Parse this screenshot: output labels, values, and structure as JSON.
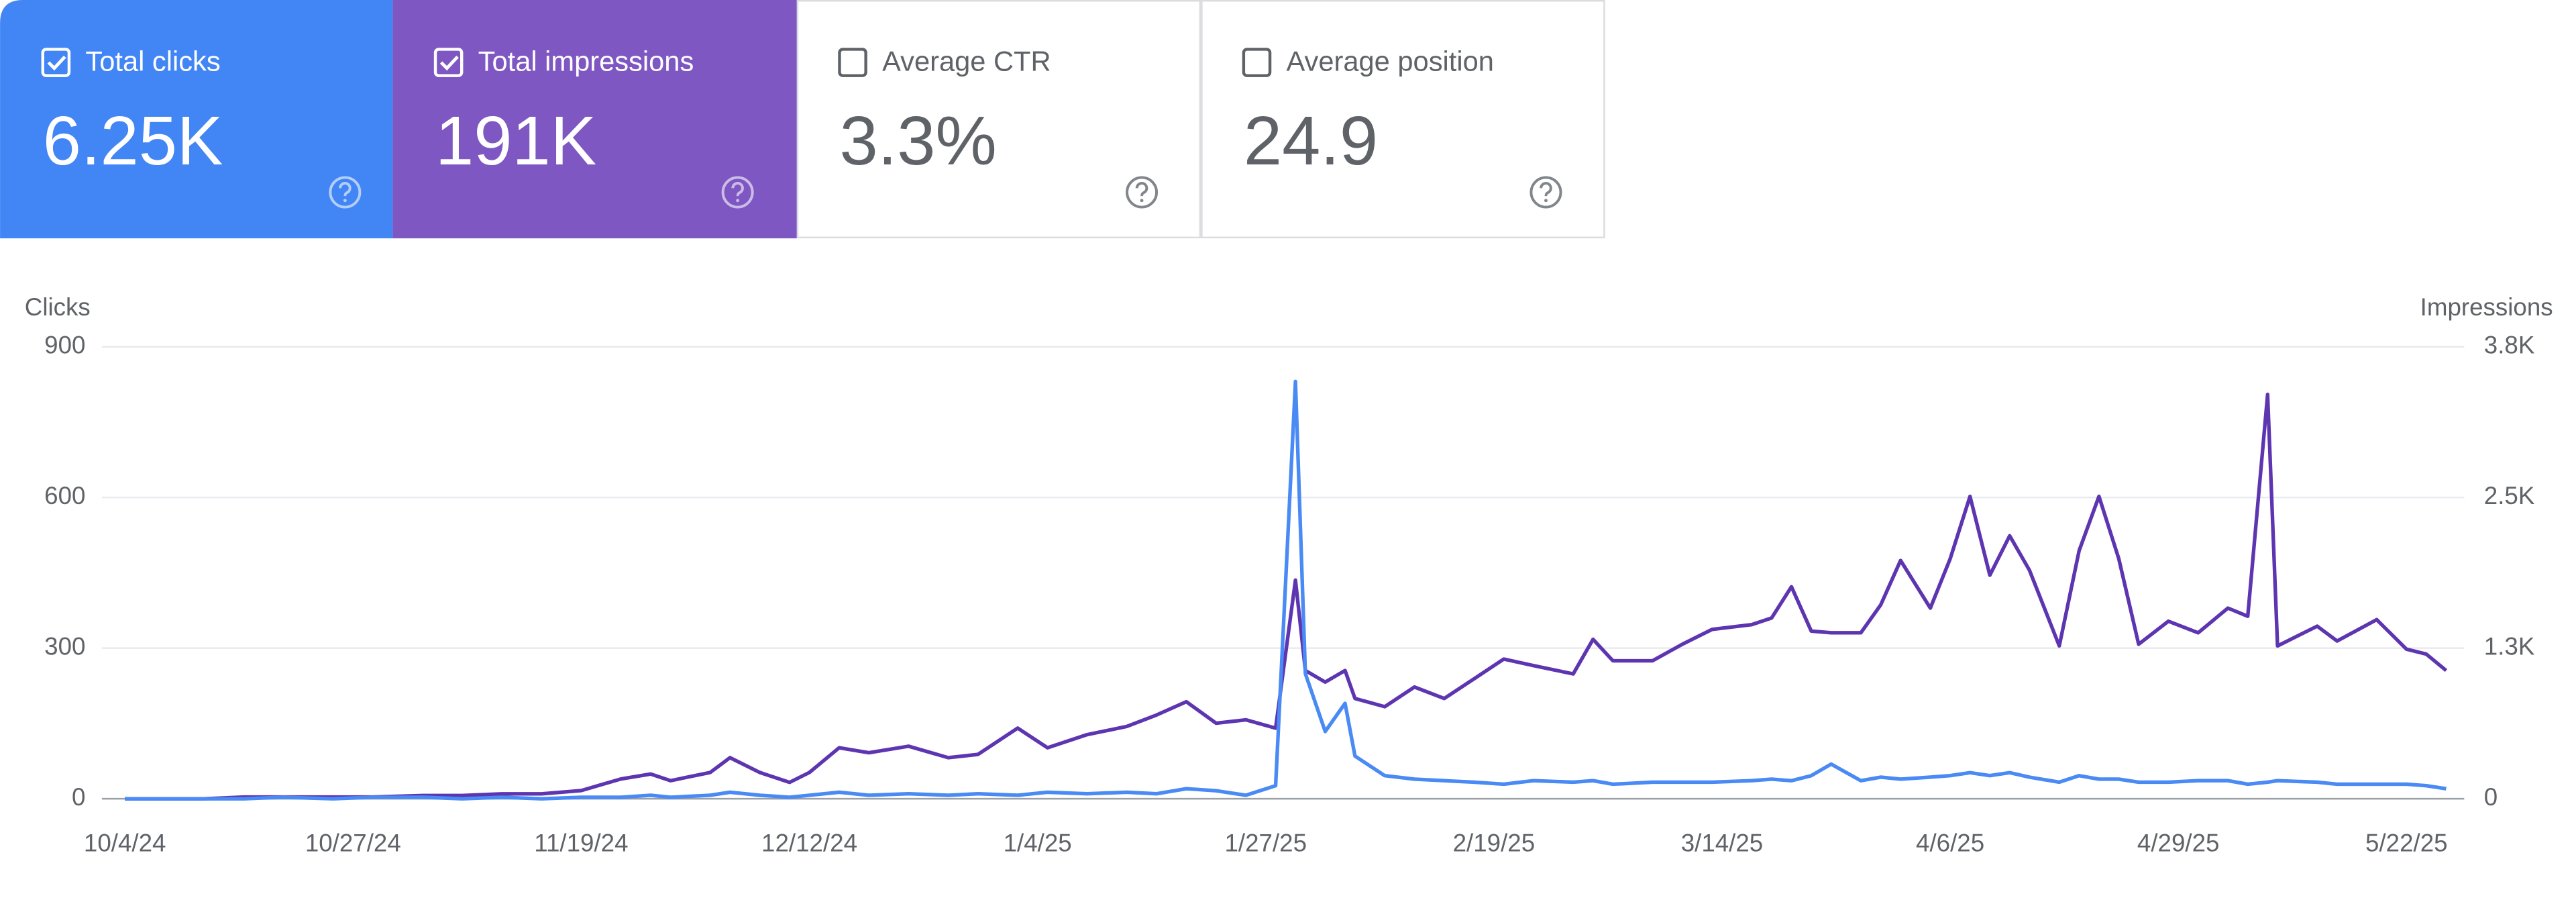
{
  "metric_cards": [
    {
      "label": "Total clicks",
      "value": "6.25K",
      "checked": true,
      "color": "#4285f4"
    },
    {
      "label": "Total impressions",
      "value": "191K",
      "checked": true,
      "color": "#7e57c2"
    },
    {
      "label": "Average CTR",
      "value": "3.3%",
      "checked": false
    },
    {
      "label": "Average position",
      "value": "24.9",
      "checked": false
    }
  ],
  "chart_data": {
    "type": "line",
    "ylabel": "Clicks",
    "y2label": "Impressions",
    "x": [
      "10/4/24",
      "10/8/24",
      "10/12/24",
      "10/16/24",
      "10/20/24",
      "10/25/24",
      "10/29/24",
      "11/3/24",
      "11/7/24",
      "11/11/24",
      "11/15/24",
      "11/19/24",
      "11/23/24",
      "11/26/24",
      "11/28/24",
      "12/2/24",
      "12/4/24",
      "12/7/24",
      "12/10/24",
      "12/12/24",
      "12/15/24",
      "12/18/24",
      "12/22/24",
      "12/26/24",
      "12/29/24",
      "1/2/25",
      "1/5/25",
      "1/9/25",
      "1/13/25",
      "1/16/25",
      "1/19/25",
      "1/22/25",
      "1/25/25",
      "1/28/25",
      "1/30/25",
      "1/31/25",
      "2/2/25",
      "2/4/25",
      "2/5/25",
      "2/8/25",
      "2/11/25",
      "2/14/25",
      "2/17/25",
      "2/20/25",
      "2/23/25",
      "2/27/25",
      "3/1/25",
      "3/3/25",
      "3/7/25",
      "3/10/25",
      "3/13/25",
      "3/17/25",
      "3/19/25",
      "3/21/25",
      "3/23/25",
      "3/25/25",
      "3/28/25",
      "3/30/25",
      "4/1/25",
      "4/4/25",
      "4/6/25",
      "4/8/25",
      "4/10/25",
      "4/12/25",
      "4/14/25",
      "4/17/25",
      "4/19/25",
      "4/21/25",
      "4/23/25",
      "4/25/25",
      "4/28/25",
      "5/1/25",
      "5/4/25",
      "5/6/25",
      "5/8/25",
      "5/9/25",
      "5/13/25",
      "5/15/25",
      "5/19/25",
      "5/22/25",
      "5/24/25",
      "5/26/25"
    ],
    "series": [
      {
        "color": "#4a8af4",
        "axis": "y",
        "values": [
          0,
          0,
          0,
          0,
          3,
          0,
          3,
          3,
          0,
          3,
          0,
          3,
          3,
          7,
          3,
          7,
          13,
          7,
          3,
          7,
          13,
          7,
          10,
          7,
          10,
          7,
          13,
          10,
          13,
          10,
          20,
          16,
          7,
          26,
          831,
          249,
          134,
          190,
          85,
          46,
          39,
          36,
          33,
          29,
          36,
          33,
          36,
          29,
          33,
          33,
          33,
          36,
          39,
          36,
          46,
          69,
          36,
          43,
          39,
          43,
          46,
          52,
          46,
          52,
          43,
          33,
          46,
          39,
          39,
          33,
          33,
          36,
          36,
          29,
          33,
          36,
          33,
          29,
          29,
          29,
          26,
          20
        ]
      },
      {
        "color": "#5e35b1",
        "axis": "y2",
        "values": [
          0,
          0,
          0,
          14,
          14,
          14,
          14,
          27,
          27,
          41,
          41,
          68,
          164,
          205,
          150,
          218,
          341,
          218,
          136,
          218,
          423,
          382,
          436,
          341,
          368,
          586,
          423,
          532,
          600,
          695,
          805,
          627,
          655,
          586,
          1814,
          1064,
          968,
          1064,
          832,
          764,
          927,
          832,
          995,
          1159,
          1105,
          1036,
          1323,
          1145,
          1145,
          1282,
          1405,
          1445,
          1500,
          1759,
          1391,
          1377,
          1377,
          1609,
          1977,
          1582,
          1991,
          2509,
          1855,
          2182,
          1895,
          1268,
          2059,
          2509,
          1991,
          1282,
          1473,
          1377,
          1582,
          1514,
          3355,
          1268,
          1432,
          1309,
          1486,
          1241,
          1200,
          1064
        ]
      }
    ],
    "ylim": [
      0,
      900
    ],
    "yticks": [
      0,
      300,
      600,
      900
    ],
    "y2lim": [
      0,
      3750
    ],
    "y2ticks": [
      0,
      {
        "value": 1250,
        "label": "1.3K"
      },
      {
        "value": 2500,
        "label": "2.5K"
      },
      {
        "value": 3750,
        "label": "3.8K"
      }
    ],
    "xticks": [
      "10/4/24",
      "10/27/24",
      "11/19/24",
      "12/12/24",
      "1/4/25",
      "1/27/25",
      "2/19/25",
      "3/14/25",
      "4/6/25",
      "4/29/25",
      "5/22/25"
    ],
    "grid": true
  }
}
